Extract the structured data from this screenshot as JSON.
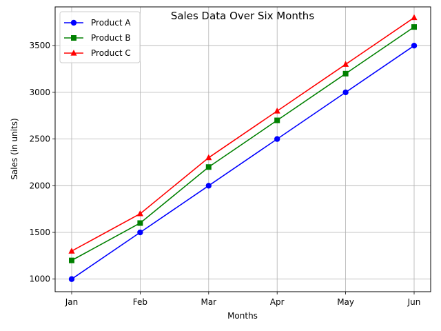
{
  "chart_data": {
    "type": "line",
    "title": "Sales Data Over Six Months",
    "xlabel": "Months",
    "ylabel": "Sales (in units)",
    "categories": [
      "Jan",
      "Feb",
      "Mar",
      "Apr",
      "May",
      "Jun"
    ],
    "ylim": [
      865,
      3915
    ],
    "yticks": [
      1000,
      1500,
      2000,
      2500,
      3000,
      3500
    ],
    "grid": true,
    "legend_position": "top-left",
    "series": [
      {
        "name": "Product A",
        "color": "#0000ff",
        "marker": "circle",
        "values": [
          1000,
          1500,
          2000,
          2500,
          3000,
          3500
        ]
      },
      {
        "name": "Product B",
        "color": "#008000",
        "marker": "square",
        "values": [
          1200,
          1600,
          2200,
          2700,
          3200,
          3700
        ]
      },
      {
        "name": "Product C",
        "color": "#ff0000",
        "marker": "triangle",
        "values": [
          1300,
          1700,
          2300,
          2800,
          3300,
          3800
        ]
      }
    ]
  }
}
